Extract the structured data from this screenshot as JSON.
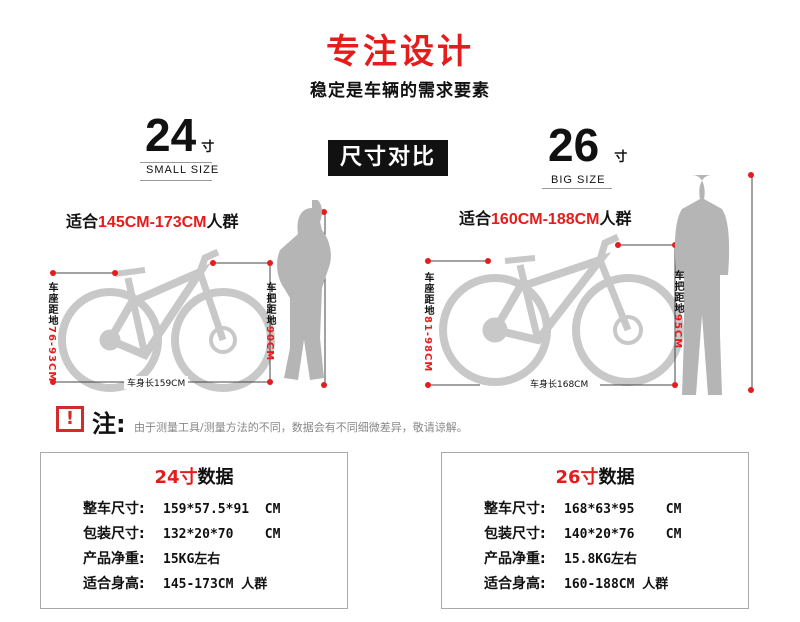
{
  "header": {
    "title": "专注设计",
    "subtitle": "稳定是车辆的需求要素",
    "compare_label": "尺寸对比"
  },
  "small": {
    "number": "24",
    "unit": "寸",
    "en": "SMALL SIZE",
    "fit_prefix": "适合",
    "fit_range": "145CM-173CM",
    "fit_suffix": "人群",
    "seat_label": "车座距地",
    "seat_value": "76-93CM",
    "handle_label": "车把距地",
    "handle_value": "90CM",
    "length_label": "车身长159CM"
  },
  "big": {
    "number": "26",
    "unit": "寸",
    "en": "BIG SIZE",
    "fit_prefix": "适合",
    "fit_range": "160CM-188CM",
    "fit_suffix": "人群",
    "seat_label": "车座距地",
    "seat_value": "81-98CM",
    "handle_label": "车把距地",
    "handle_value": "95CM",
    "length_label": "车身长168CM"
  },
  "note": {
    "icon": "exclamation-icon",
    "label": "注:",
    "text": "由于测量工具/测量方法的不同，数据会有不同细微差异，敬请谅解。"
  },
  "specs": [
    {
      "title_size": "24寸",
      "title_rest": "数据",
      "rows": [
        {
          "key": "整车尺寸:",
          "value": "159*57.5*91  CM"
        },
        {
          "key": "包装尺寸:",
          "value": "132*20*70    CM"
        },
        {
          "key": "产品净重:",
          "value": "15KG左右"
        },
        {
          "key": "适合身高:",
          "value": "145-173CM 人群"
        }
      ]
    },
    {
      "title_size": "26寸",
      "title_rest": "数据",
      "rows": [
        {
          "key": "整车尺寸:",
          "value": "168*63*95    CM"
        },
        {
          "key": "包装尺寸:",
          "value": "140*20*76    CM"
        },
        {
          "key": "产品净重:",
          "value": "15.8KG左右"
        },
        {
          "key": "适合身高:",
          "value": "160-188CM 人群"
        }
      ]
    }
  ],
  "colors": {
    "accent": "#e51c1c",
    "bike": "#c8c8c8",
    "silhouette": "#b5b5b5"
  }
}
